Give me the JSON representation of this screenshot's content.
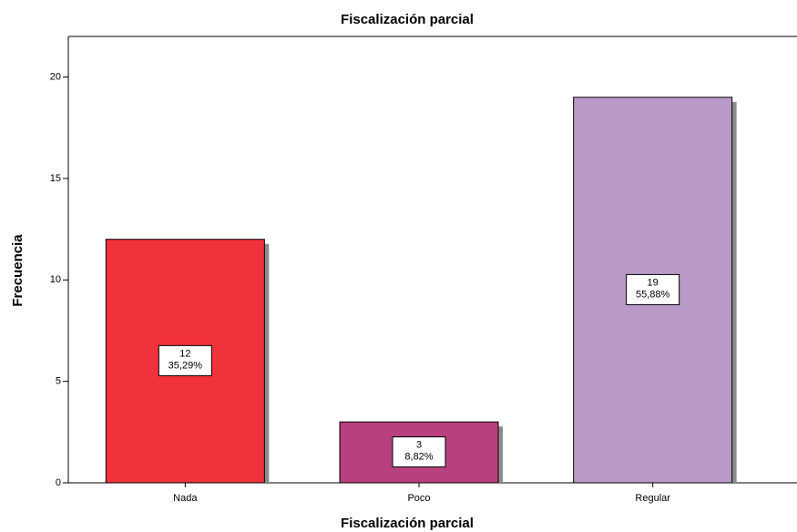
{
  "chart_data": {
    "type": "bar",
    "title": "Fiscalización parcial",
    "x_label": "Fiscalización parcial",
    "y_label": "Frecuencia",
    "categories": [
      "Nada",
      "Poco",
      "Regular"
    ],
    "values": [
      12,
      3,
      19
    ],
    "percent_labels": [
      "35,29%",
      "8,82%",
      "55,88%"
    ],
    "colors": [
      "#f0323c",
      "#b8407e",
      "#b899c8"
    ],
    "ylim": [
      0,
      22
    ],
    "yticks": [
      0,
      5,
      10,
      15,
      20
    ],
    "grid": false
  }
}
